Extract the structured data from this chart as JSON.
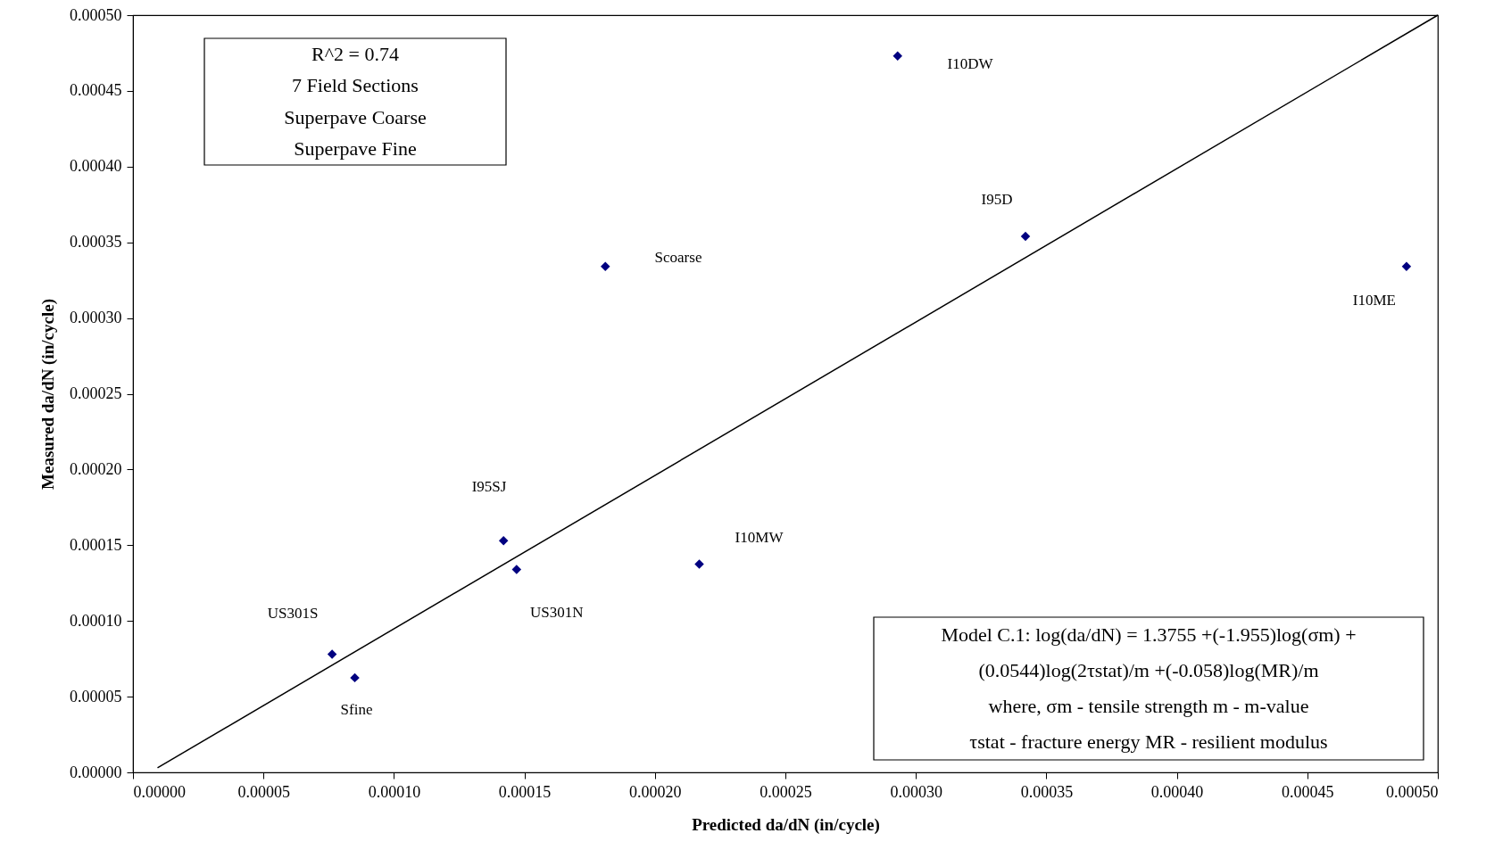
{
  "chart_data": {
    "type": "scatter",
    "xlabel": "Predicted da/dN (in/cycle)",
    "ylabel": "Measured da/dN (in/cycle)",
    "series": [
      {
        "color": "#000080",
        "marker": "diamond",
        "x": [
          0.000293,
          0.000342,
          0.000488,
          0.000181,
          0.000142,
          0.000147,
          0.000217,
          7.63e-05,
          8.5e-05
        ],
        "values": [
          0.000473,
          0.000354,
          0.000334,
          0.000334,
          0.000153,
          0.000134,
          0.0001375,
          7.8e-05,
          6.25e-05
        ]
      },
      {
        "type": "line",
        "color": "#000000",
        "x": [
          9.4e-06,
          0.0005
        ],
        "values": [
          3e-06,
          0.0005
        ]
      }
    ],
    "xlim": [
      0,
      0.0005
    ],
    "ylim": [
      0,
      0.0005
    ],
    "xticks": [
      {
        "value": 0,
        "label": "0.00000"
      },
      {
        "value": 5e-05,
        "label": "0.00005"
      },
      {
        "value": 0.0001,
        "label": "0.00010"
      },
      {
        "value": 0.00015,
        "label": "0.00015"
      },
      {
        "value": 0.0002,
        "label": "0.00020"
      },
      {
        "value": 0.00025,
        "label": "0.00025"
      },
      {
        "value": 0.0003,
        "label": "0.00030"
      },
      {
        "value": 0.00035,
        "label": "0.00035"
      },
      {
        "value": 0.0004,
        "label": "0.00040"
      },
      {
        "value": 0.00045,
        "label": "0.00045"
      },
      {
        "value": 0.0005,
        "label": "0.00050"
      }
    ],
    "yticks": [
      {
        "value": 0,
        "label": "0.00000"
      },
      {
        "value": 5e-05,
        "label": "0.00005"
      },
      {
        "value": 0.0001,
        "label": "0.00010"
      },
      {
        "value": 0.00015,
        "label": "0.00015"
      },
      {
        "value": 0.0002,
        "label": "0.00020"
      },
      {
        "value": 0.00025,
        "label": "0.00025"
      },
      {
        "value": 0.0003,
        "label": "0.00030"
      },
      {
        "value": 0.00035,
        "label": "0.00035"
      },
      {
        "value": 0.0004,
        "label": "0.00040"
      },
      {
        "value": 0.00045,
        "label": "0.00045"
      },
      {
        "value": 0.0005,
        "label": "0.00050"
      }
    ],
    "annotations": [
      {
        "text": "I95D",
        "x": 0.000342,
        "y": 0.000354
      },
      {
        "text": "I10ME",
        "x": 0.000488,
        "y": 0.000334
      },
      {
        "text": "US301N",
        "x": 0.000147,
        "y": 0.000134
      },
      {
        "text": "I10MW",
        "x": 0.000217,
        "y": 0.0001375
      },
      {
        "text": "US301S",
        "x": 7.63e-05,
        "y": 7.8e-05
      },
      {
        "text": "Sfine",
        "x": 8.5e-05,
        "y": 6.25e-05
      },
      "I10DW",
      "Scoarse",
      "I95SJ",
      "R^2 = 0.74\n7 Field Sections\nSuperpave    Coarse\nSuperpave    Fine",
      "Model C.1: log(da/dN) = 1.3755 +(-1.955)log(σm) +\n(0.0544)log(2τstat)/m +(-0.058)log(MR)/m\nwhere, σm - tensile strength  m - m-value\nτstat - fracture energy  MR - resilient modulus"
    ],
    "grid": false
  }
}
